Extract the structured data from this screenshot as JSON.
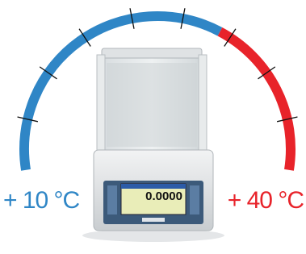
{
  "labels": {
    "min_temp": "+ 10 °C",
    "max_temp": "+ 40 °C"
  },
  "display": {
    "reading": "0.0000"
  }
}
